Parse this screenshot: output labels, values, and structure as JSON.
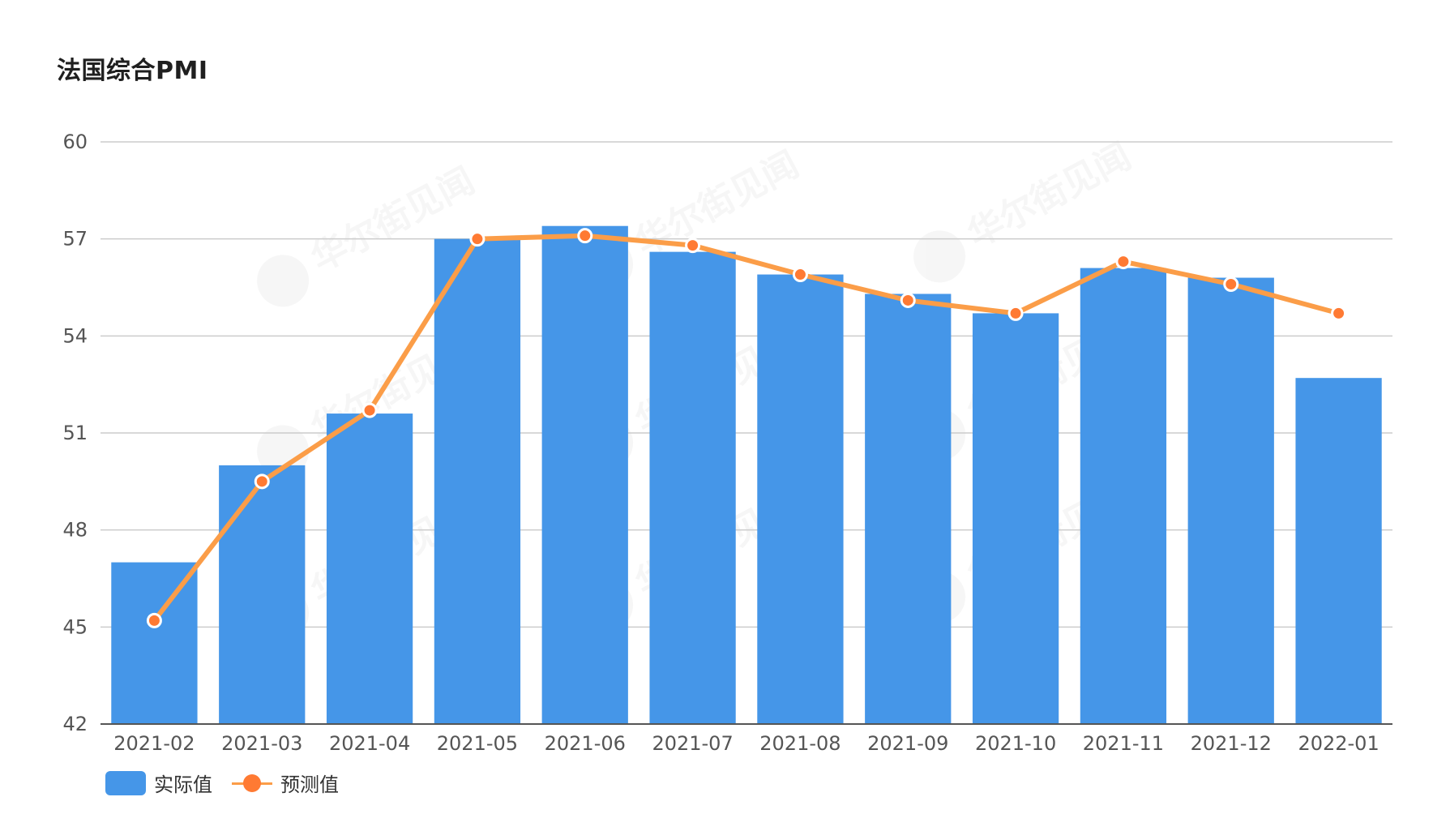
{
  "title": "法国综合PMI",
  "colors": {
    "bar": "#4596e8",
    "line": "#fb9d48",
    "point": "#ff7a33",
    "grid": "#cccccc",
    "axis": "#555555"
  },
  "legend": {
    "actual_label": "实际值",
    "forecast_label": "预测值"
  },
  "watermark": "华尔街见闻",
  "chart_data": {
    "type": "bar",
    "title": "法国综合PMI",
    "xlabel": "",
    "ylabel": "",
    "ylim": [
      42,
      60
    ],
    "yticks": [
      42,
      45,
      48,
      51,
      54,
      57,
      60
    ],
    "grid": true,
    "legend_position": "bottom-left",
    "categories": [
      "2021-02",
      "2021-03",
      "2021-04",
      "2021-05",
      "2021-06",
      "2021-07",
      "2021-08",
      "2021-09",
      "2021-10",
      "2021-11",
      "2021-12",
      "2022-01"
    ],
    "series": [
      {
        "name": "实际值",
        "type": "bar",
        "values": [
          47.0,
          50.0,
          51.6,
          57.0,
          57.4,
          56.6,
          55.9,
          55.3,
          54.7,
          56.1,
          55.8,
          52.7
        ]
      },
      {
        "name": "预测值",
        "type": "line",
        "values": [
          45.2,
          49.5,
          51.7,
          57.0,
          57.1,
          56.8,
          55.9,
          55.1,
          54.7,
          56.3,
          55.6,
          54.7
        ]
      }
    ]
  }
}
